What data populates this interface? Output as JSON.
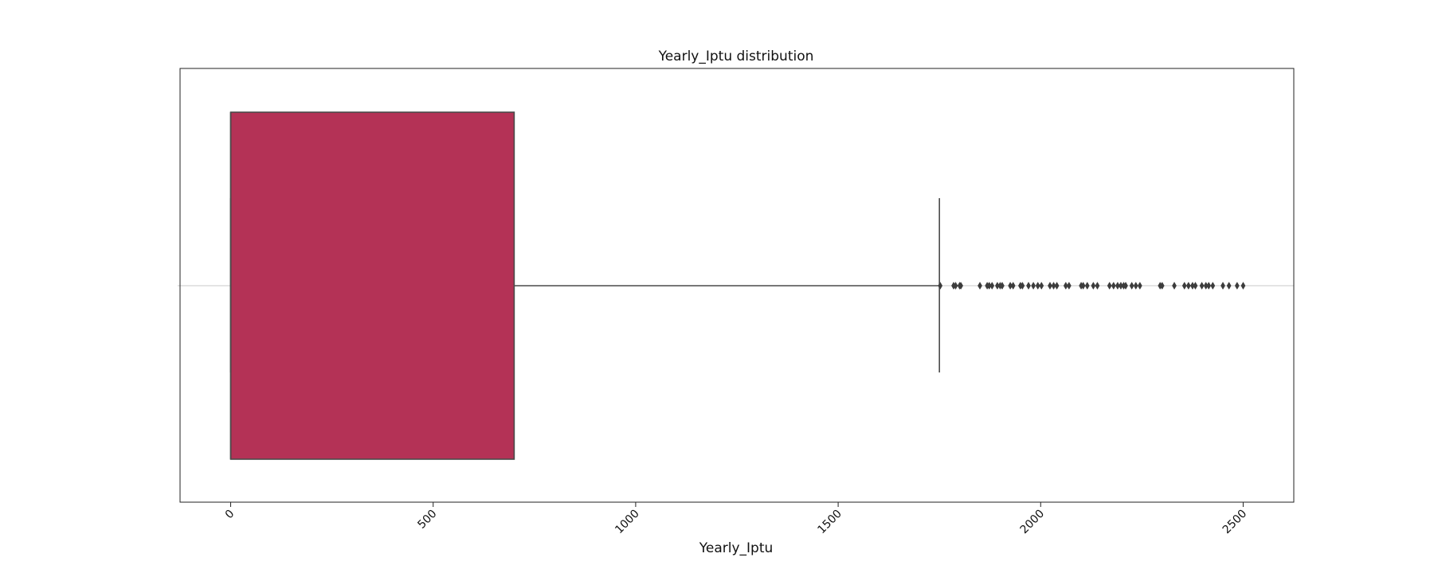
{
  "chart_data": {
    "type": "box",
    "title": "Yearly_Iptu distribution",
    "xlabel": "Yearly_Iptu",
    "ylabel": "",
    "orientation": "horizontal",
    "xlim": [
      -125,
      2625
    ],
    "xticks": [
      0,
      500,
      1000,
      1500,
      2000,
      2500
    ],
    "xtick_rotation_deg": -45,
    "grid": "horizontal center line only",
    "box": {
      "whisker_low": 0,
      "q1": 0,
      "median": 0,
      "q3": 700,
      "whisker_high": 1750
    },
    "outliers": [
      1752,
      1785,
      1790,
      1800,
      1803,
      1850,
      1868,
      1873,
      1880,
      1893,
      1900,
      1905,
      1925,
      1932,
      1950,
      1955,
      1970,
      1982,
      1993,
      2002,
      2023,
      2032,
      2040,
      2062,
      2070,
      2100,
      2105,
      2115,
      2130,
      2140,
      2170,
      2180,
      2190,
      2198,
      2205,
      2210,
      2225,
      2235,
      2245,
      2295,
      2300,
      2330,
      2355,
      2365,
      2375,
      2382,
      2398,
      2408,
      2415,
      2425,
      2450,
      2465,
      2485,
      2500
    ],
    "colors": {
      "box_fill": "#b43256",
      "box_edge": "#4a4a4a",
      "whisker": "#4a4a4a",
      "outlier": "#3c3c3c",
      "frame": "#222222",
      "center_line": "#c8c8c8"
    }
  }
}
